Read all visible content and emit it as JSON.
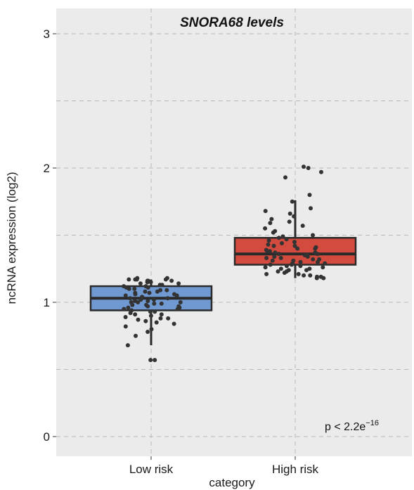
{
  "chart_data": {
    "type": "box",
    "title": "SNORA68 levels",
    "xlabel": "category",
    "ylabel": "ncRNA expression (log2)",
    "ylim": [
      0,
      3.15
    ],
    "yticks": [
      "0",
      "1",
      "2",
      "3"
    ],
    "categories": [
      "Low risk",
      "High risk"
    ],
    "grid": true,
    "annotation": {
      "prefix": "p < 2.2e",
      "exponent": "−16"
    },
    "colors": {
      "panel": "#ebebeb",
      "grid": "#b8b8b8",
      "point": "#333333",
      "box_outline": "#2a2a2a",
      "low_risk_box": "#7099d2",
      "high_risk_box": "#d24b3e"
    },
    "boxes": [
      {
        "category": "Low risk",
        "whisker_low": 0.68,
        "q1": 0.94,
        "median": 1.03,
        "q3": 1.12,
        "whisker_high": 1.17
      },
      {
        "category": "High risk",
        "whisker_low": 1.18,
        "q1": 1.28,
        "median": 1.36,
        "q3": 1.48,
        "whisker_high": 1.76
      }
    ],
    "points": [
      {
        "category": "Low risk",
        "values": [
          0.57,
          0.57,
          0.68,
          0.75,
          0.78,
          0.8,
          0.82,
          0.84,
          0.85,
          0.86,
          0.87,
          0.88,
          0.88,
          0.89,
          0.9,
          0.91,
          0.91,
          0.92,
          0.93,
          0.93,
          0.94,
          0.95,
          0.95,
          0.96,
          0.96,
          0.97,
          0.97,
          0.98,
          0.98,
          0.99,
          0.99,
          1.0,
          1.0,
          1.0,
          1.01,
          1.01,
          1.02,
          1.02,
          1.03,
          1.03,
          1.04,
          1.04,
          1.05,
          1.05,
          1.06,
          1.06,
          1.07,
          1.07,
          1.08,
          1.08,
          1.09,
          1.09,
          1.1,
          1.1,
          1.11,
          1.11,
          1.12,
          1.12,
          1.13,
          1.13,
          1.14,
          1.14,
          1.15,
          1.15,
          1.15,
          1.16,
          1.16,
          1.16,
          1.17,
          1.17,
          1.17,
          1.17,
          1.18,
          1.18
        ]
      },
      {
        "category": "High risk",
        "values": [
          1.18,
          1.18,
          1.19,
          1.19,
          1.2,
          1.2,
          1.21,
          1.21,
          1.22,
          1.23,
          1.23,
          1.24,
          1.24,
          1.25,
          1.25,
          1.26,
          1.26,
          1.27,
          1.27,
          1.28,
          1.28,
          1.29,
          1.29,
          1.3,
          1.3,
          1.31,
          1.31,
          1.32,
          1.32,
          1.33,
          1.33,
          1.34,
          1.34,
          1.35,
          1.35,
          1.36,
          1.36,
          1.37,
          1.37,
          1.38,
          1.38,
          1.39,
          1.4,
          1.4,
          1.41,
          1.42,
          1.42,
          1.43,
          1.44,
          1.45,
          1.46,
          1.47,
          1.48,
          1.49,
          1.5,
          1.52,
          1.53,
          1.55,
          1.57,
          1.59,
          1.6,
          1.62,
          1.64,
          1.66,
          1.68,
          1.7,
          1.75,
          1.8,
          1.93,
          1.97,
          2.0,
          2.01
        ]
      }
    ]
  }
}
